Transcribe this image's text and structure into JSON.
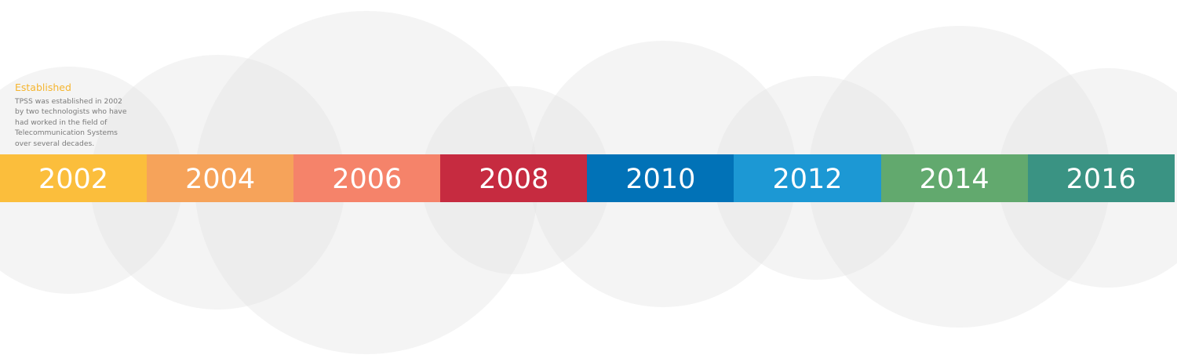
{
  "info": {
    "title": "Established",
    "lines": [
      "TPSS was established in 2002",
      "by two technologists who have",
      "had worked in the field of",
      "Telecommunication Systems",
      "over several decades."
    ]
  },
  "timeline": [
    {
      "label": "2002",
      "color": "#fbbe3c"
    },
    {
      "label": "2004",
      "color": "#f6a35a"
    },
    {
      "label": "2006",
      "color": "#f5836a"
    },
    {
      "label": "2008",
      "color": "#c62b40"
    },
    {
      "label": "2010",
      "color": "#0172b7"
    },
    {
      "label": "2012",
      "color": "#1c98d4"
    },
    {
      "label": "2014",
      "color": "#62a96e"
    },
    {
      "label": "2016",
      "color": "#3a9383"
    }
  ],
  "colors": {
    "accent": "#f5b52f",
    "body_text": "#7a7a7a",
    "bubble": "#e1e1e1"
  }
}
